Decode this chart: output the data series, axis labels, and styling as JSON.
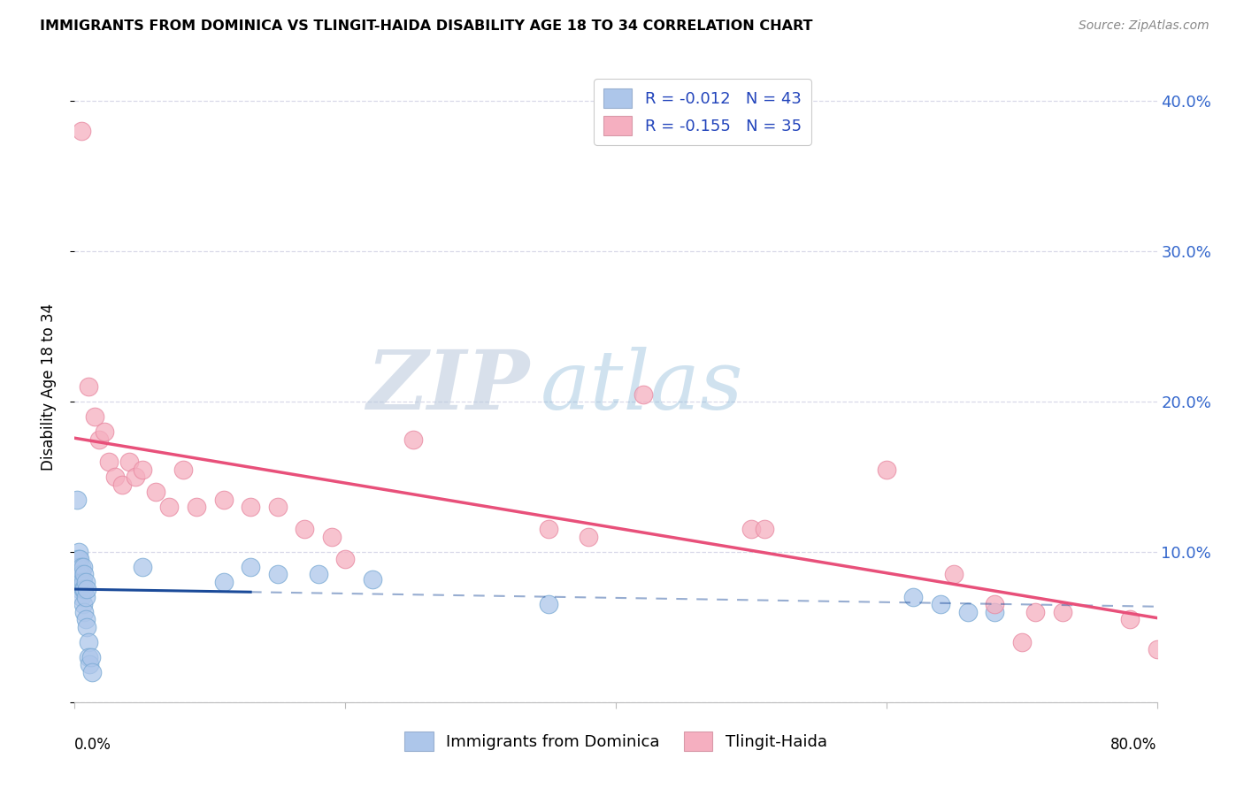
{
  "title": "IMMIGRANTS FROM DOMINICA VS TLINGIT-HAIDA DISABILITY AGE 18 TO 34 CORRELATION CHART",
  "source": "Source: ZipAtlas.com",
  "ylabel": "Disability Age 18 to 34",
  "xlim": [
    0.0,
    0.8
  ],
  "ylim": [
    0.0,
    0.42
  ],
  "yticks": [
    0.0,
    0.1,
    0.2,
    0.3,
    0.4
  ],
  "ytick_labels_right": [
    "",
    "10.0%",
    "20.0%",
    "30.0%",
    "40.0%"
  ],
  "xticks": [
    0.0,
    0.2,
    0.4,
    0.6,
    0.8
  ],
  "series1_label": "Immigrants from Dominica",
  "series1_R": "-0.012",
  "series1_N": "43",
  "series1_color": "#adc6ea",
  "series1_edge_color": "#7aaad4",
  "series1_line_color": "#1a4a99",
  "series2_label": "Tlingit-Haida",
  "series2_R": "-0.155",
  "series2_N": "35",
  "series2_color": "#f5afc0",
  "series2_edge_color": "#e888a0",
  "series2_line_color": "#e8507a",
  "series1_x": [
    0.002,
    0.002,
    0.002,
    0.003,
    0.003,
    0.003,
    0.003,
    0.004,
    0.004,
    0.004,
    0.004,
    0.005,
    0.005,
    0.005,
    0.005,
    0.006,
    0.006,
    0.006,
    0.006,
    0.007,
    0.007,
    0.007,
    0.008,
    0.008,
    0.008,
    0.009,
    0.009,
    0.01,
    0.01,
    0.011,
    0.012,
    0.013,
    0.05,
    0.11,
    0.13,
    0.15,
    0.18,
    0.22,
    0.35,
    0.62,
    0.64,
    0.66,
    0.68
  ],
  "series1_y": [
    0.135,
    0.095,
    0.085,
    0.1,
    0.095,
    0.09,
    0.08,
    0.095,
    0.085,
    0.08,
    0.075,
    0.09,
    0.085,
    0.08,
    0.07,
    0.09,
    0.08,
    0.075,
    0.065,
    0.085,
    0.075,
    0.06,
    0.08,
    0.07,
    0.055,
    0.075,
    0.05,
    0.04,
    0.03,
    0.025,
    0.03,
    0.02,
    0.09,
    0.08,
    0.09,
    0.085,
    0.085,
    0.082,
    0.065,
    0.07,
    0.065,
    0.06,
    0.06
  ],
  "series2_x": [
    0.005,
    0.01,
    0.015,
    0.018,
    0.022,
    0.025,
    0.03,
    0.035,
    0.04,
    0.045,
    0.05,
    0.06,
    0.07,
    0.08,
    0.09,
    0.11,
    0.13,
    0.15,
    0.17,
    0.19,
    0.2,
    0.25,
    0.35,
    0.38,
    0.42,
    0.5,
    0.51,
    0.6,
    0.65,
    0.68,
    0.7,
    0.71,
    0.73,
    0.78,
    0.8
  ],
  "series2_y": [
    0.38,
    0.21,
    0.19,
    0.175,
    0.18,
    0.16,
    0.15,
    0.145,
    0.16,
    0.15,
    0.155,
    0.14,
    0.13,
    0.155,
    0.13,
    0.135,
    0.13,
    0.13,
    0.115,
    0.11,
    0.095,
    0.175,
    0.115,
    0.11,
    0.205,
    0.115,
    0.115,
    0.155,
    0.085,
    0.065,
    0.04,
    0.06,
    0.06,
    0.055,
    0.035
  ],
  "watermark_zip": "ZIP",
  "watermark_atlas": "atlas",
  "background_color": "#ffffff",
  "grid_color": "#d8d8e8",
  "spine_color": "#cccccc"
}
